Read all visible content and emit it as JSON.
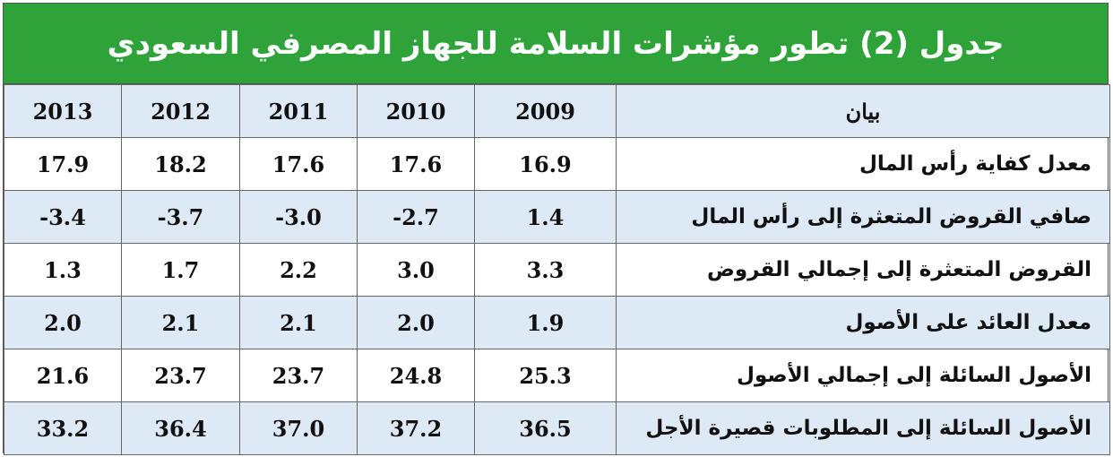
{
  "title": "جدول (2) تطور مؤشرات السلامة للجهاز المصرفي السعودي",
  "table": {
    "header": [
      "بيان",
      "2009",
      "2010",
      "2011",
      "2012",
      "2013"
    ],
    "rows": [
      [
        "معدل كفاية رأس المال",
        "16.9",
        "17.6",
        "17.6",
        "18.2",
        "17.9"
      ],
      [
        "صافي القروض المتعثرة إلى رأس المال",
        "1.4",
        "-2.7",
        "-3.0",
        "-3.7",
        "-3.4"
      ],
      [
        "القروض المتعثرة إلى إجمالي القروض",
        "3.3",
        "3.0",
        "2.2",
        "1.7",
        "1.3"
      ],
      [
        "معدل العائد على الأصول",
        "1.9",
        "2.0",
        "2.1",
        "2.1",
        "2.0"
      ],
      [
        "الأصول السائلة إلى إجمالي الأصول",
        "25.3",
        "24.8",
        "23.7",
        "23.7",
        "21.6"
      ],
      [
        "الأصول السائلة إلى المطلوبات قصيرة الأجل",
        "36.5",
        "37.2",
        "37.0",
        "36.4",
        "33.2"
      ]
    ]
  }
}
